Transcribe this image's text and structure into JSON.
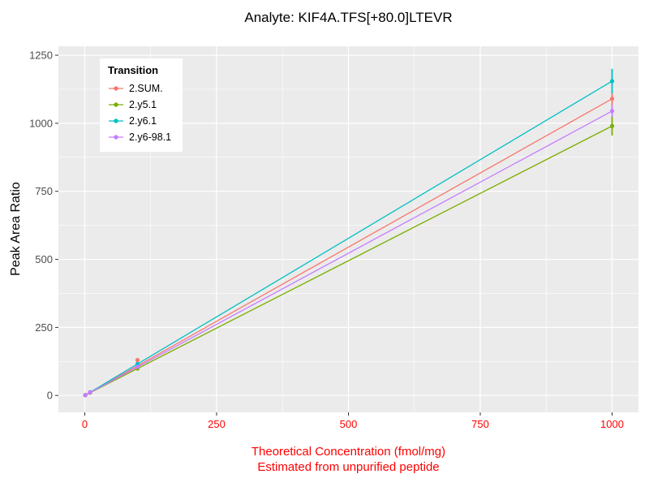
{
  "chart_data": {
    "type": "line",
    "title": "Analyte: KIF4A.TFS[+80.0]LTEVR",
    "xlabel": "Theoretical Concentration (fmol/mg)",
    "xlabel_line2": "Estimated from unpurified peptide",
    "ylabel": "Peak Area Ratio",
    "xlim": [
      -50,
      1050
    ],
    "ylim": [
      -62,
      1283
    ],
    "xticks": [
      "0",
      "250",
      "500",
      "750",
      "1000"
    ],
    "xtick_values": [
      0,
      250,
      500,
      750,
      1000
    ],
    "yticks": [
      "0",
      "250",
      "500",
      "750",
      "1000",
      "1250"
    ],
    "ytick_values": [
      0,
      250,
      500,
      750,
      1000,
      1250
    ],
    "grid": true,
    "legend": {
      "title": "Transition",
      "position": "top-left-inside"
    },
    "series": [
      {
        "name": "2.SUM.",
        "color": "#F8766D",
        "line": [
          [
            0,
            0
          ],
          [
            1000,
            1090
          ]
        ],
        "points": [
          [
            1,
            2
          ],
          [
            10,
            12
          ],
          [
            100,
            130
          ],
          [
            1000,
            1090
          ]
        ],
        "error_bar": {
          "x": 1000,
          "ymin": 1065,
          "ymax": 1115
        }
      },
      {
        "name": "2.y5.1",
        "color": "#7CAE00",
        "line": [
          [
            0,
            0
          ],
          [
            1000,
            990
          ]
        ],
        "points": [
          [
            1,
            1
          ],
          [
            10,
            10
          ],
          [
            100,
            99
          ],
          [
            1000,
            990
          ]
        ],
        "error_bar": {
          "x": 1000,
          "ymin": 955,
          "ymax": 1025
        }
      },
      {
        "name": "2.y6.1",
        "color": "#00BFC4",
        "line": [
          [
            0,
            0
          ],
          [
            1000,
            1155
          ]
        ],
        "points": [
          [
            1,
            1
          ],
          [
            10,
            12
          ],
          [
            100,
            116
          ],
          [
            1000,
            1155
          ]
        ],
        "error_bar": {
          "x": 1000,
          "ymin": 1110,
          "ymax": 1200
        }
      },
      {
        "name": "2.y6-98.1",
        "color": "#C77CFF",
        "line": [
          [
            0,
            0
          ],
          [
            1000,
            1045
          ]
        ],
        "points": [
          [
            1,
            1
          ],
          [
            10,
            11
          ],
          [
            100,
            105
          ],
          [
            1000,
            1045
          ]
        ],
        "error_bar": {
          "x": 1000,
          "ymin": 1023,
          "ymax": 1067
        }
      }
    ],
    "colors": {
      "panel_background": "#EBEBEB",
      "gridline": "#FFFFFF",
      "x_axis_text": "#FF0000",
      "y_axis_text": "#4D4D4D",
      "axis_title_x": "#FF0000",
      "axis_title_y": "#000000",
      "title": "#000000",
      "tick_mark": "#333333"
    }
  }
}
